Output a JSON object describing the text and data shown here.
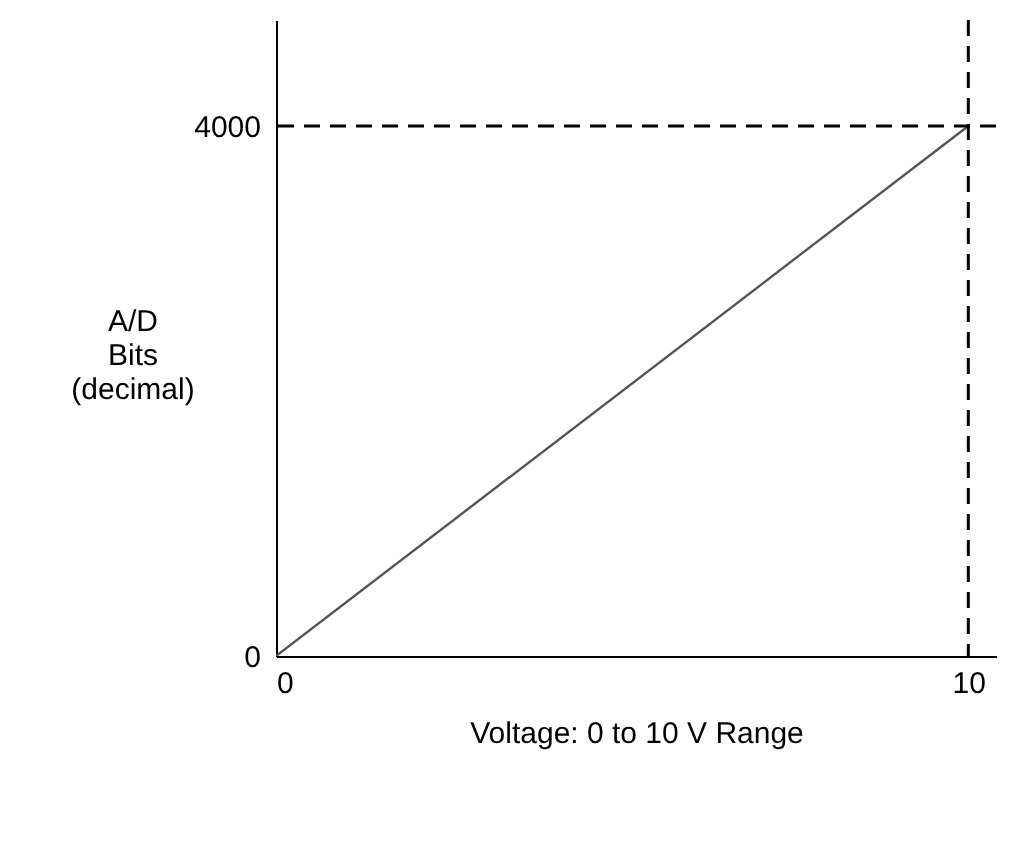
{
  "chart_data": {
    "type": "line",
    "xlabel": "Voltage: 0 to 10 V Range",
    "ylabel": "A/D\nBits\n(decimal)",
    "x": [
      0,
      10
    ],
    "series": [
      {
        "color": "#555555",
        "values": [
          0,
          4000
        ]
      }
    ],
    "xlim": [
      0,
      10.4
    ],
    "ylim": [
      0,
      4800
    ],
    "xticks": [
      0,
      10
    ],
    "yticks": [
      0,
      4000
    ],
    "grid": false,
    "marker": "none",
    "line_style": "solid",
    "ref_lines": [
      {
        "axis": "x",
        "value": 10,
        "color": "#000000",
        "line_style": "dashed"
      },
      {
        "axis": "y",
        "value": 4000,
        "color": "#000000",
        "line_style": "dashed"
      }
    ]
  }
}
